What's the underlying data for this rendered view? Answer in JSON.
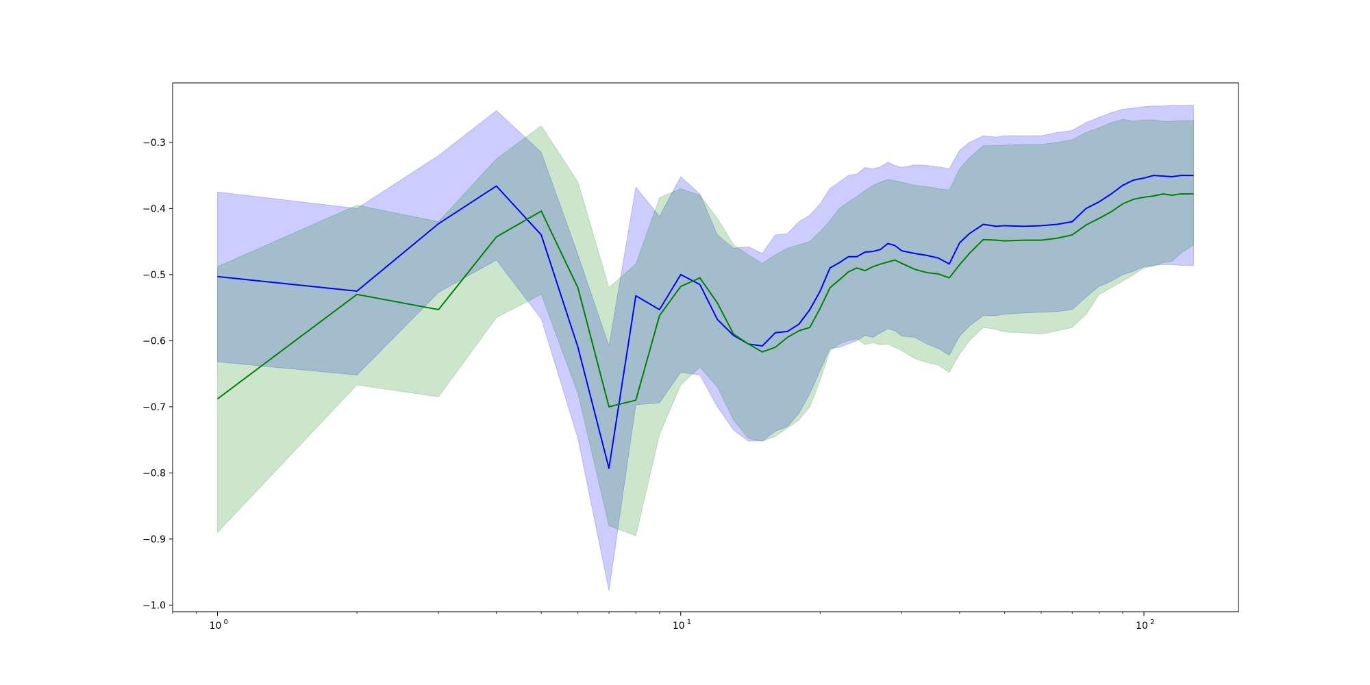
{
  "chart_data": {
    "type": "line",
    "xscale": "log",
    "xlim": [
      0.8,
      160
    ],
    "ylim": [
      -1.01,
      -0.21
    ],
    "grid": false,
    "x_ticks": [
      {
        "base": "10",
        "exp": "0",
        "value": 1
      },
      {
        "base": "10",
        "exp": "1",
        "value": 10
      },
      {
        "base": "10",
        "exp": "2",
        "value": 100
      }
    ],
    "y_ticks": [
      {
        "value": -0.3,
        "label": "−0.3"
      },
      {
        "value": -0.4,
        "label": "−0.4"
      },
      {
        "value": -0.5,
        "label": "−0.5"
      },
      {
        "value": -0.6,
        "label": "−0.6"
      },
      {
        "value": -0.7,
        "label": "−0.7"
      },
      {
        "value": -0.8,
        "label": "−0.8"
      },
      {
        "value": -0.9,
        "label": "−0.9"
      },
      {
        "value": -1.0,
        "label": "−1.0"
      }
    ],
    "series": [
      {
        "color": "#0000ff",
        "band_color": "#0000ff",
        "band_opacity": 0.2,
        "x": [
          1,
          2,
          3,
          4,
          5,
          6,
          7,
          8,
          9,
          10,
          11,
          12,
          13,
          14,
          15,
          16,
          17,
          18,
          19,
          20,
          21,
          22,
          23,
          24,
          25,
          26,
          27,
          28,
          29,
          30,
          32,
          34,
          36,
          38,
          40,
          42,
          45,
          48,
          50,
          55,
          60,
          65,
          70,
          75,
          80,
          85,
          90,
          95,
          100,
          105,
          110,
          115,
          120,
          128
        ],
        "mean": [
          -0.503,
          -0.525,
          -0.423,
          -0.366,
          -0.44,
          -0.61,
          -0.793,
          -0.532,
          -0.553,
          -0.5,
          -0.515,
          -0.568,
          -0.592,
          -0.605,
          -0.608,
          -0.588,
          -0.586,
          -0.575,
          -0.553,
          -0.525,
          -0.49,
          -0.482,
          -0.473,
          -0.473,
          -0.466,
          -0.465,
          -0.462,
          -0.453,
          -0.456,
          -0.464,
          -0.468,
          -0.471,
          -0.475,
          -0.484,
          -0.452,
          -0.438,
          -0.424,
          -0.427,
          -0.426,
          -0.427,
          -0.426,
          -0.424,
          -0.42,
          -0.4,
          -0.39,
          -0.378,
          -0.365,
          -0.357,
          -0.354,
          -0.35,
          -0.351,
          -0.352,
          -0.35,
          -0.35
        ],
        "upper": [
          -0.375,
          -0.4,
          -0.32,
          -0.252,
          -0.315,
          -0.47,
          -0.608,
          -0.368,
          -0.412,
          -0.352,
          -0.378,
          -0.44,
          -0.46,
          -0.458,
          -0.468,
          -0.44,
          -0.438,
          -0.42,
          -0.41,
          -0.393,
          -0.37,
          -0.36,
          -0.35,
          -0.348,
          -0.338,
          -0.34,
          -0.337,
          -0.33,
          -0.335,
          -0.338,
          -0.334,
          -0.335,
          -0.337,
          -0.34,
          -0.312,
          -0.3,
          -0.29,
          -0.292,
          -0.29,
          -0.29,
          -0.29,
          -0.285,
          -0.282,
          -0.27,
          -0.262,
          -0.255,
          -0.25,
          -0.248,
          -0.246,
          -0.245,
          -0.245,
          -0.244,
          -0.244,
          -0.244
        ],
        "lower": [
          -0.632,
          -0.652,
          -0.527,
          -0.478,
          -0.567,
          -0.748,
          -0.978,
          -0.697,
          -0.694,
          -0.648,
          -0.652,
          -0.7,
          -0.735,
          -0.752,
          -0.752,
          -0.737,
          -0.73,
          -0.71,
          -0.68,
          -0.645,
          -0.612,
          -0.61,
          -0.605,
          -0.6,
          -0.592,
          -0.595,
          -0.588,
          -0.582,
          -0.585,
          -0.593,
          -0.595,
          -0.605,
          -0.612,
          -0.622,
          -0.593,
          -0.578,
          -0.562,
          -0.562,
          -0.56,
          -0.558,
          -0.557,
          -0.556,
          -0.553,
          -0.534,
          -0.518,
          -0.51,
          -0.5,
          -0.495,
          -0.488,
          -0.486,
          -0.485,
          -0.485,
          -0.486,
          -0.486
        ]
      },
      {
        "color": "#008000",
        "band_color": "#008000",
        "band_opacity": 0.2,
        "x": [
          1,
          2,
          3,
          4,
          5,
          6,
          7,
          8,
          9,
          10,
          11,
          12,
          13,
          14,
          15,
          16,
          17,
          18,
          19,
          20,
          21,
          22,
          23,
          24,
          25,
          26,
          27,
          28,
          29,
          30,
          32,
          34,
          36,
          38,
          40,
          42,
          45,
          48,
          50,
          55,
          60,
          65,
          70,
          75,
          80,
          85,
          90,
          95,
          100,
          105,
          110,
          115,
          120,
          128
        ],
        "mean": [
          -0.688,
          -0.53,
          -0.553,
          -0.443,
          -0.404,
          -0.52,
          -0.7,
          -0.69,
          -0.562,
          -0.518,
          -0.505,
          -0.543,
          -0.59,
          -0.605,
          -0.617,
          -0.61,
          -0.595,
          -0.585,
          -0.58,
          -0.551,
          -0.52,
          -0.508,
          -0.496,
          -0.49,
          -0.494,
          -0.488,
          -0.484,
          -0.481,
          -0.478,
          -0.483,
          -0.492,
          -0.497,
          -0.499,
          -0.505,
          -0.485,
          -0.468,
          -0.447,
          -0.448,
          -0.449,
          -0.448,
          -0.448,
          -0.445,
          -0.44,
          -0.425,
          -0.415,
          -0.405,
          -0.393,
          -0.386,
          -0.383,
          -0.381,
          -0.378,
          -0.38,
          -0.378,
          -0.378
        ],
        "upper": [
          -0.488,
          -0.395,
          -0.42,
          -0.325,
          -0.275,
          -0.36,
          -0.52,
          -0.484,
          -0.384,
          -0.37,
          -0.38,
          -0.415,
          -0.455,
          -0.47,
          -0.483,
          -0.47,
          -0.46,
          -0.455,
          -0.45,
          -0.435,
          -0.418,
          -0.4,
          -0.39,
          -0.382,
          -0.373,
          -0.365,
          -0.36,
          -0.356,
          -0.358,
          -0.36,
          -0.365,
          -0.367,
          -0.37,
          -0.372,
          -0.34,
          -0.323,
          -0.305,
          -0.305,
          -0.304,
          -0.303,
          -0.303,
          -0.3,
          -0.296,
          -0.285,
          -0.278,
          -0.27,
          -0.265,
          -0.268,
          -0.266,
          -0.266,
          -0.268,
          -0.268,
          -0.267,
          -0.267
        ],
        "lower": [
          -0.89,
          -0.667,
          -0.685,
          -0.565,
          -0.53,
          -0.68,
          -0.88,
          -0.895,
          -0.742,
          -0.667,
          -0.64,
          -0.67,
          -0.72,
          -0.748,
          -0.752,
          -0.745,
          -0.732,
          -0.72,
          -0.7,
          -0.66,
          -0.615,
          -0.605,
          -0.6,
          -0.597,
          -0.606,
          -0.603,
          -0.606,
          -0.605,
          -0.61,
          -0.615,
          -0.627,
          -0.633,
          -0.637,
          -0.648,
          -0.62,
          -0.6,
          -0.58,
          -0.583,
          -0.587,
          -0.588,
          -0.59,
          -0.585,
          -0.58,
          -0.56,
          -0.53,
          -0.52,
          -0.51,
          -0.5,
          -0.49,
          -0.487,
          -0.482,
          -0.48,
          -0.468,
          -0.455
        ]
      }
    ]
  }
}
